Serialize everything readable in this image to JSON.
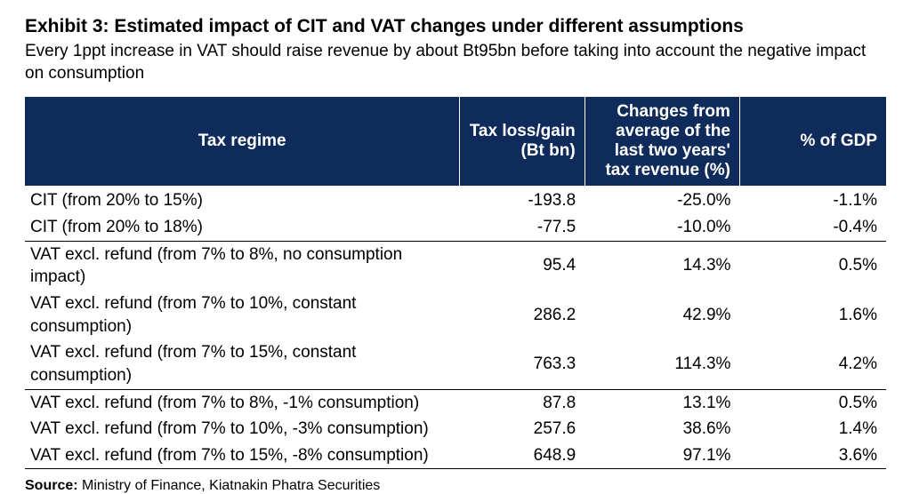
{
  "title": "Exhibit 3: Estimated impact of CIT and VAT changes under different assumptions",
  "subtitle": "Every 1ppt increase in VAT should raise revenue by about Bt95bn before taking into account the negative impact on consumption",
  "columns": [
    "Tax regime",
    "Tax loss/gain (Bt bn)",
    "Changes from average of the last two years' tax revenue (%)",
    "% of GDP"
  ],
  "column_widths_pct": [
    50.5,
    14.5,
    18,
    17
  ],
  "header_bg": "#0f2b5b",
  "header_fg": "#ffffff",
  "body_fg": "#000000",
  "background": "#ffffff",
  "divider_color": "#000000",
  "font_family": "Arial, Helvetica, sans-serif",
  "title_fontsize": 21,
  "subtitle_fontsize": 19,
  "header_fontsize": 19,
  "row_fontsize": 19,
  "source_fontsize": 16,
  "groups": [
    {
      "rows": [
        {
          "regime": "CIT (from 20% to 15%)",
          "loss_gain": "-193.8",
          "chg": "-25.0%",
          "gdp": "-1.1%"
        },
        {
          "regime": "CIT (from 20% to 18%)",
          "loss_gain": "-77.5",
          "chg": "-10.0%",
          "gdp": "-0.4%"
        }
      ]
    },
    {
      "rows": [
        {
          "regime": "VAT excl. refund (from 7% to 8%, no consumption impact)",
          "loss_gain": "95.4",
          "chg": "14.3%",
          "gdp": "0.5%"
        },
        {
          "regime": "VAT excl. refund (from 7% to 10%, constant consumption)",
          "loss_gain": "286.2",
          "chg": "42.9%",
          "gdp": "1.6%"
        },
        {
          "regime": "VAT excl. refund (from 7% to 15%, constant consumption)",
          "loss_gain": "763.3",
          "chg": "114.3%",
          "gdp": "4.2%"
        }
      ]
    },
    {
      "rows": [
        {
          "regime": "VAT excl. refund (from 7% to 8%, -1% consumption)",
          "loss_gain": "87.8",
          "chg": "13.1%",
          "gdp": "0.5%"
        },
        {
          "regime": "VAT excl. refund (from 7% to 10%, -3% consumption)",
          "loss_gain": "257.6",
          "chg": "38.6%",
          "gdp": "1.4%"
        },
        {
          "regime": "VAT excl. refund (from 7% to 15%, -8% consumption)",
          "loss_gain": "648.9",
          "chg": "97.1%",
          "gdp": "3.6%"
        }
      ]
    }
  ],
  "source_label": "Source:",
  "source_text": " Ministry of Finance, Kiatnakin Phatra Securities"
}
